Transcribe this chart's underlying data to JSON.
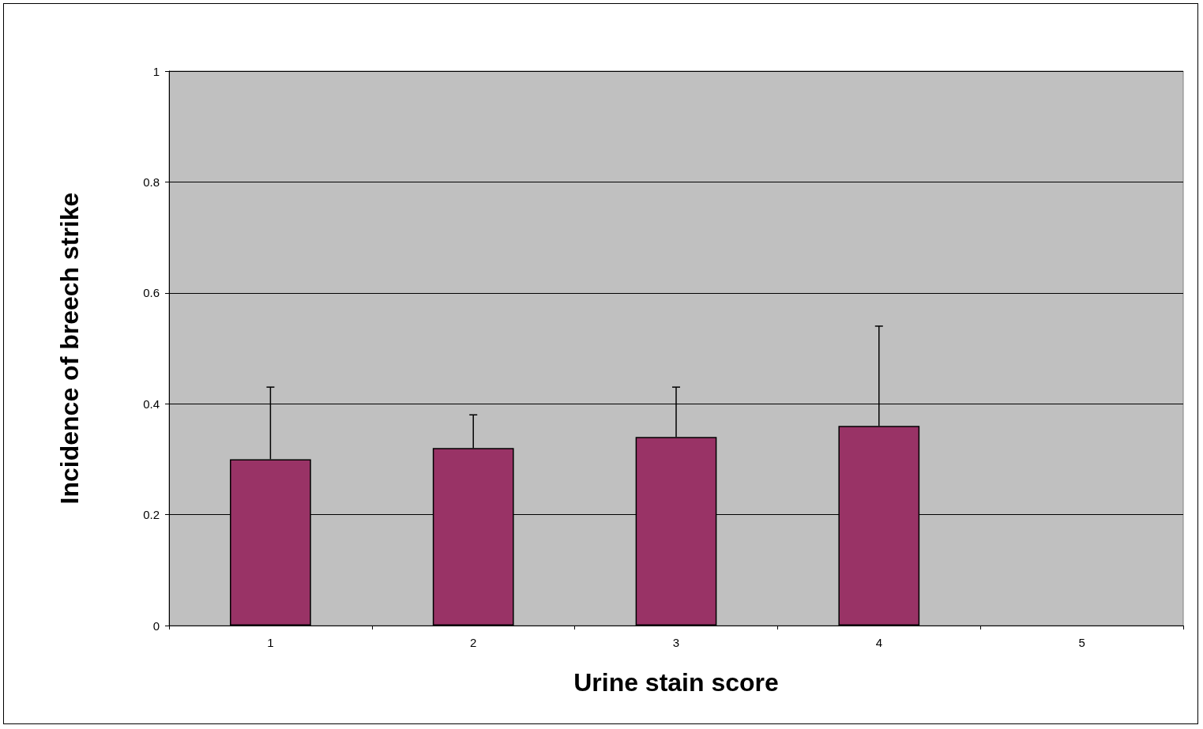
{
  "chart_data": {
    "type": "bar",
    "xlabel": "Urine stain score",
    "ylabel": "Incidence of breech strike",
    "categories": [
      "1",
      "2",
      "3",
      "4",
      "5"
    ],
    "values": [
      0.3,
      0.32,
      0.34,
      0.36,
      null
    ],
    "errors": [
      [
        0.3,
        0.43
      ],
      [
        0.32,
        0.38
      ],
      [
        0.34,
        0.43
      ],
      [
        0.36,
        0.54
      ],
      null
    ],
    "color": "#993366",
    "ylim": [
      0,
      1
    ],
    "yticks": [
      0,
      0.2,
      0.4,
      0.6,
      0.8,
      1
    ],
    "grid": "y"
  }
}
